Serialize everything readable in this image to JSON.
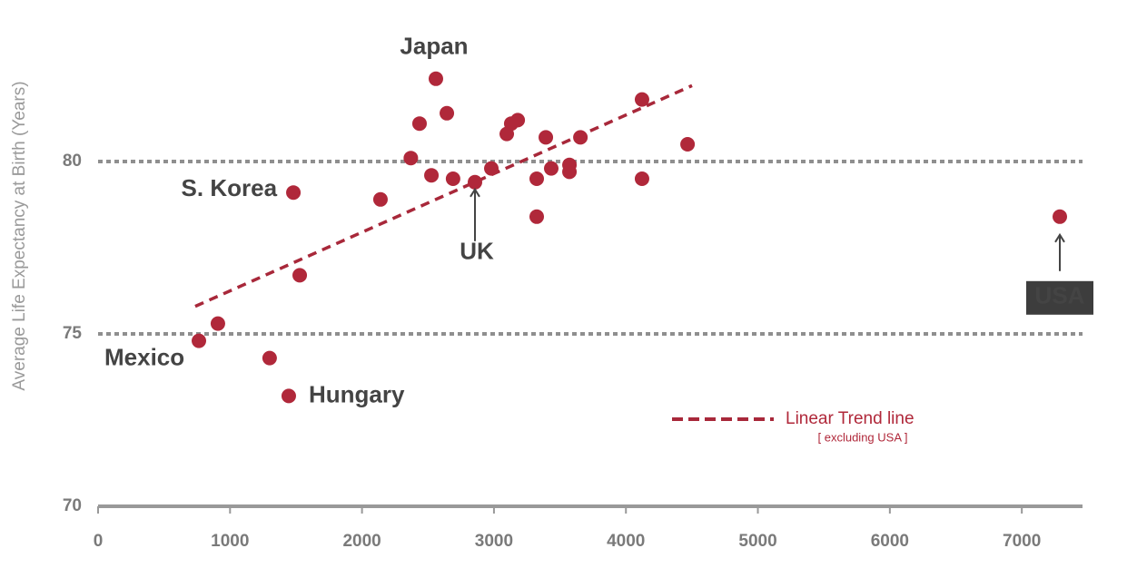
{
  "chart_data": {
    "type": "scatter",
    "y_label": "Average Life Expectancy at Birth (Years)",
    "xlim": [
      0,
      7460
    ],
    "ylim": [
      70,
      84
    ],
    "xticks": [
      0,
      1000,
      2000,
      3000,
      4000,
      5000,
      6000,
      7000
    ],
    "yticks": [
      70,
      75,
      80
    ],
    "grid": true,
    "points": {
      "color": "#b0283a",
      "x": [
        764,
        908,
        1300,
        1445,
        1480,
        1528,
        2140,
        2370,
        2436,
        2526,
        2560,
        2643,
        2690,
        2856,
        2980,
        3097,
        3131,
        3180,
        3324,
        3324,
        3393,
        3434,
        3572,
        3572,
        3655,
        4122,
        4122,
        4467,
        7288
      ],
      "y": [
        74.8,
        75.3,
        74.3,
        73.2,
        79.1,
        76.7,
        78.9,
        80.1,
        81.1,
        79.6,
        82.4,
        81.4,
        79.5,
        79.4,
        79.8,
        80.8,
        81.1,
        81.2,
        79.5,
        78.4,
        80.7,
        79.8,
        79.9,
        79.7,
        80.7,
        79.5,
        81.8,
        80.5,
        78.4
      ],
      "labels": [
        "Mexico",
        null,
        null,
        "Hungary",
        "S. Korea",
        null,
        null,
        null,
        null,
        null,
        "Japan",
        null,
        null,
        "UK",
        null,
        null,
        null,
        null,
        null,
        null,
        null,
        null,
        null,
        null,
        null,
        null,
        null,
        null,
        "USA"
      ]
    },
    "trend": {
      "name": "Linear Trend line",
      "note": "[ excluding USA ]",
      "color": "#a8283a",
      "x": [
        736,
        4501
      ],
      "y": [
        75.8,
        82.2
      ]
    }
  }
}
